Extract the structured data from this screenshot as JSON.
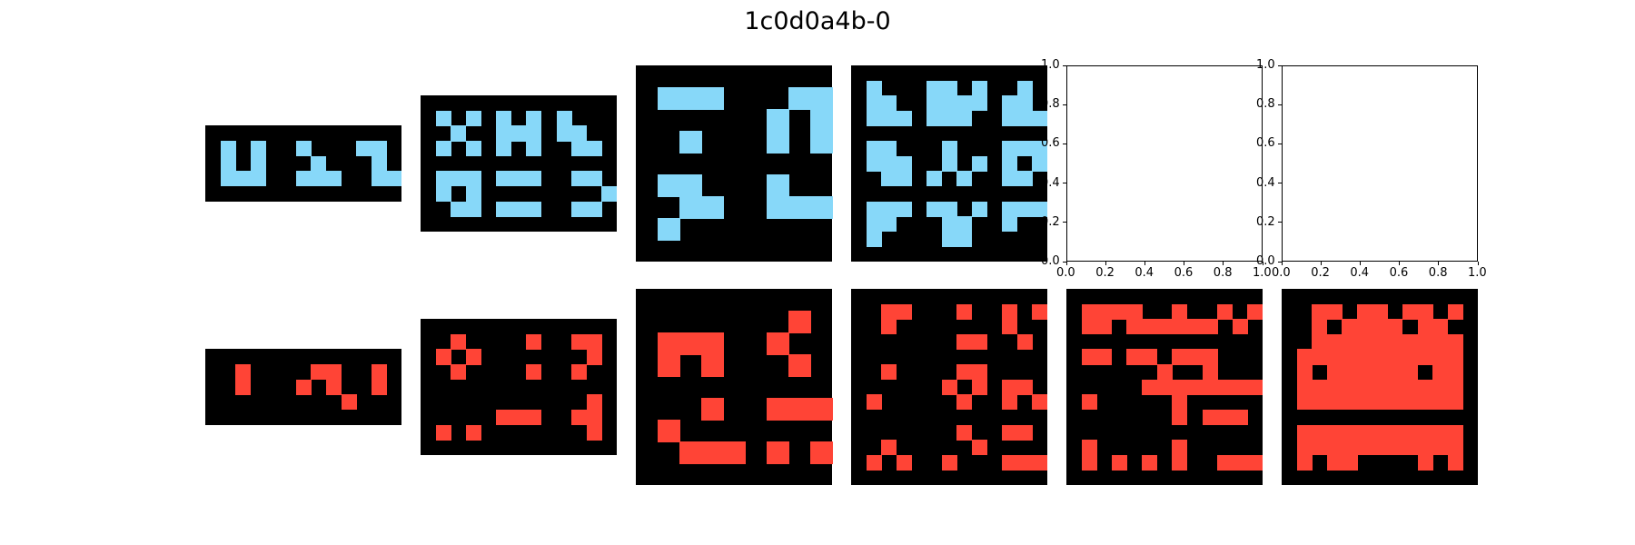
{
  "title": "1c0d0a4b-0",
  "colors": {
    "background": "#000000",
    "input_fill": "#87d8f9",
    "output_fill": "#ff4436"
  },
  "axis_ticks": [
    "0.0",
    "0.2",
    "0.4",
    "0.6",
    "0.8",
    "1.0"
  ],
  "panels": {
    "inputs": [
      {
        "name": "example-1-input",
        "grid": [
          "0000000000000",
          "0101001000110",
          "0101000100010",
          "0111001110011",
          "0000000000000"
        ]
      },
      {
        "name": "example-2-input",
        "grid": [
          "0000000000000",
          "0101010101000",
          "0010011101100",
          "0101010100110",
          "0000000000000",
          "0111011100110",
          "0101000000001",
          "0011011100110",
          "0000000000000"
        ]
      },
      {
        "name": "example-3-input",
        "grid": [
          "000000000",
          "011100011",
          "000000101",
          "001000101",
          "000000000",
          "011000100",
          "001100111",
          "010000000",
          "000000000"
        ]
      },
      {
        "name": "example-4-input",
        "grid": [
          "0000000000000",
          "0100011010010",
          "0110011110110",
          "0111011100111",
          "0000000000000",
          "0110001000111",
          "0111001010101",
          "0011010100110",
          "0000000000000",
          "0111011010111",
          "0110001100100",
          "0100001100000",
          "0000000000000"
        ]
      }
    ],
    "outputs": [
      {
        "name": "example-1-output",
        "grid": [
          "0000000000000",
          "0010000110010",
          "0010001010010",
          "0000000001000",
          "0000000000000"
        ]
      },
      {
        "name": "example-2-output",
        "grid": [
          "0000000000000",
          "0010000100110",
          "0101000000010",
          "0010000100100",
          "0000000000000",
          "0000000000010",
          "0000011100110",
          "0101000000010",
          "0000000000000"
        ]
      },
      {
        "name": "example-3-output",
        "grid": [
          "000000000",
          "000000010",
          "011100100",
          "010100010",
          "000000000",
          "000100111",
          "010000000",
          "001110101",
          "000000000"
        ]
      },
      {
        "name": "example-4-output",
        "grid": [
          "0000000000000",
          "0011000100101",
          "0010000000100",
          "0000000110010",
          "0000000000000",
          "0010000110000",
          "0000001010110",
          "0100000100101",
          "0000000000000",
          "0000000100110",
          "0010000010000",
          "0101001000111",
          "0000000000000"
        ]
      },
      {
        "name": "test-output-prediction",
        "grid": [
          "0000000000000",
          "0111100100101",
          "0110111111010",
          "0000000000000",
          "0110110111000",
          "0000001001000",
          "0000011111111",
          "0100000100000",
          "0000000101110",
          "0000000000000",
          "0100000100000",
          "0101010100111",
          "0000000000000"
        ]
      },
      {
        "name": "test-output-solution",
        "grid": [
          "0000000000000",
          "0011011011010",
          "0010111101100",
          "0011111111110",
          "0111111111110",
          "0101111110110",
          "0111111111110",
          "0111111111110",
          "0000000000000",
          "0111111111110",
          "0111111111110",
          "0101100001010",
          "0000000000000"
        ]
      }
    ]
  }
}
